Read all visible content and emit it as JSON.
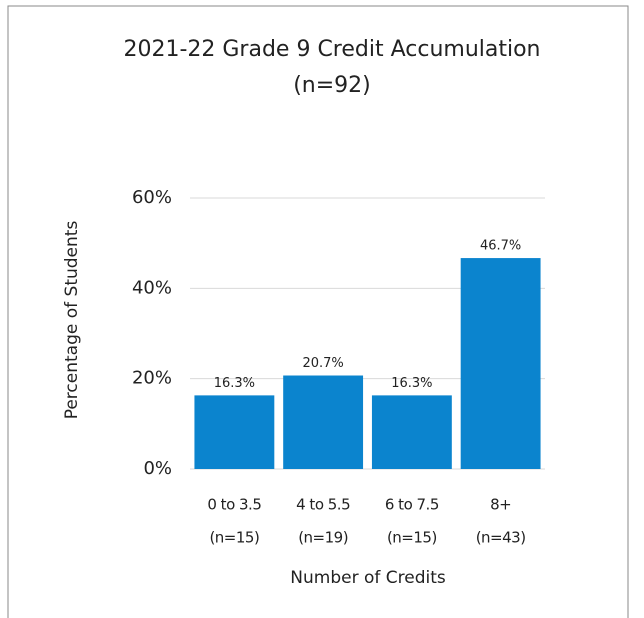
{
  "chart_data": {
    "type": "bar",
    "title": "2021-22 Grade 9 Credit Accumulation",
    "subtitle": "(n=92)",
    "x_label": "Number of Credits",
    "y_label": "Percentage of Students",
    "categories": [
      [
        "0 to 3.5",
        "(n=15)"
      ],
      [
        "4 to 5.5",
        "(n=19)"
      ],
      [
        "6 to 7.5",
        "(n=15)"
      ],
      [
        "8+",
        "(n=43)"
      ]
    ],
    "values": [
      16.3,
      20.7,
      16.3,
      46.7
    ],
    "value_labels": [
      "16.3%",
      "20.7%",
      "16.3%",
      "46.7%"
    ],
    "color": "#0b84ce",
    "ylim": [
      0,
      60
    ],
    "yticks": [
      {
        "value": 0,
        "label": "0%"
      },
      {
        "value": 20,
        "label": "20%"
      },
      {
        "value": 40,
        "label": "40%"
      },
      {
        "value": 60,
        "label": "60%"
      }
    ],
    "grid": true
  }
}
